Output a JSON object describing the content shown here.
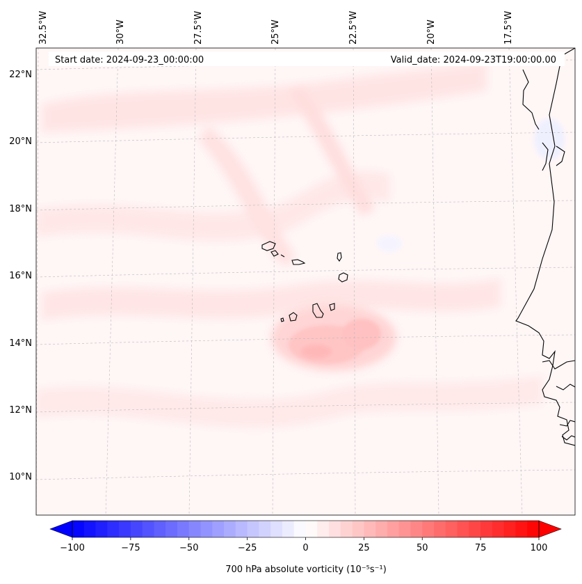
{
  "header": {
    "start_date": "Start date: 2024-09-23_00:00:00",
    "valid_date": "Valid_date: 2024-09-23T19:00:00.00"
  },
  "map": {
    "longitude_labels": [
      "32.5°W",
      "30°W",
      "27.5°W",
      "25°W",
      "22.5°W",
      "20°W",
      "17.5°W"
    ],
    "latitude_labels": [
      "22°N",
      "20°N",
      "18°N",
      "16°N",
      "14°N",
      "12°N",
      "10°N"
    ]
  },
  "colorbar": {
    "label": "700 hPa absolute vorticity (10⁻⁵s⁻¹)",
    "tick_labels": [
      "−100",
      "−75",
      "−50",
      "−25",
      "0",
      "25",
      "50",
      "75",
      "100"
    ],
    "min": -100,
    "max": 100,
    "colors": {
      "low": "#0000ff",
      "mid": "#ffffff",
      "high": "#ff0000"
    }
  }
}
